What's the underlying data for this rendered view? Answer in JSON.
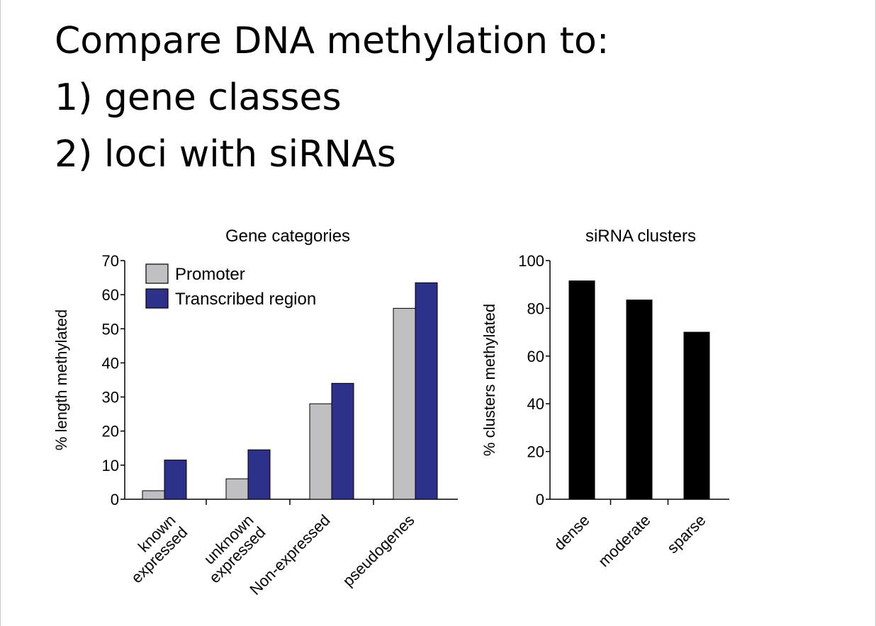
{
  "slide": {
    "title_lines": [
      "Compare DNA methylation to:",
      "1) gene classes",
      "2) loci with siRNAs"
    ]
  },
  "chart_data": [
    {
      "type": "bar",
      "title": "Gene categories",
      "ylabel": "% length methylated",
      "xlabel": "",
      "ylim": [
        0,
        70
      ],
      "yticks": [
        0,
        10,
        20,
        30,
        40,
        50,
        60,
        70
      ],
      "categories": [
        [
          "known",
          "expressed"
        ],
        [
          "unknown",
          "expressed"
        ],
        [
          "Non-expressed"
        ],
        [
          "pseudogenes"
        ]
      ],
      "series": [
        {
          "name": "Promoter",
          "color": "#c0c0c4",
          "values": [
            2.5,
            6,
            28,
            56
          ]
        },
        {
          "name": "Transcribed region",
          "color": "#2e318c",
          "values": [
            11.5,
            14.5,
            34,
            63.5
          ]
        }
      ],
      "legend": "top-left",
      "grid": false
    },
    {
      "type": "bar",
      "title": "siRNA clusters",
      "ylabel": "% clusters methylated",
      "xlabel": "",
      "ylim": [
        0,
        100
      ],
      "yticks": [
        0,
        20,
        40,
        60,
        80,
        100
      ],
      "categories": [
        [
          "dense"
        ],
        [
          "moderate"
        ],
        [
          "sparse"
        ]
      ],
      "series": [
        {
          "color": "#000000",
          "values": [
            91.5,
            83.5,
            70
          ]
        }
      ],
      "legend": "none",
      "grid": false
    }
  ]
}
